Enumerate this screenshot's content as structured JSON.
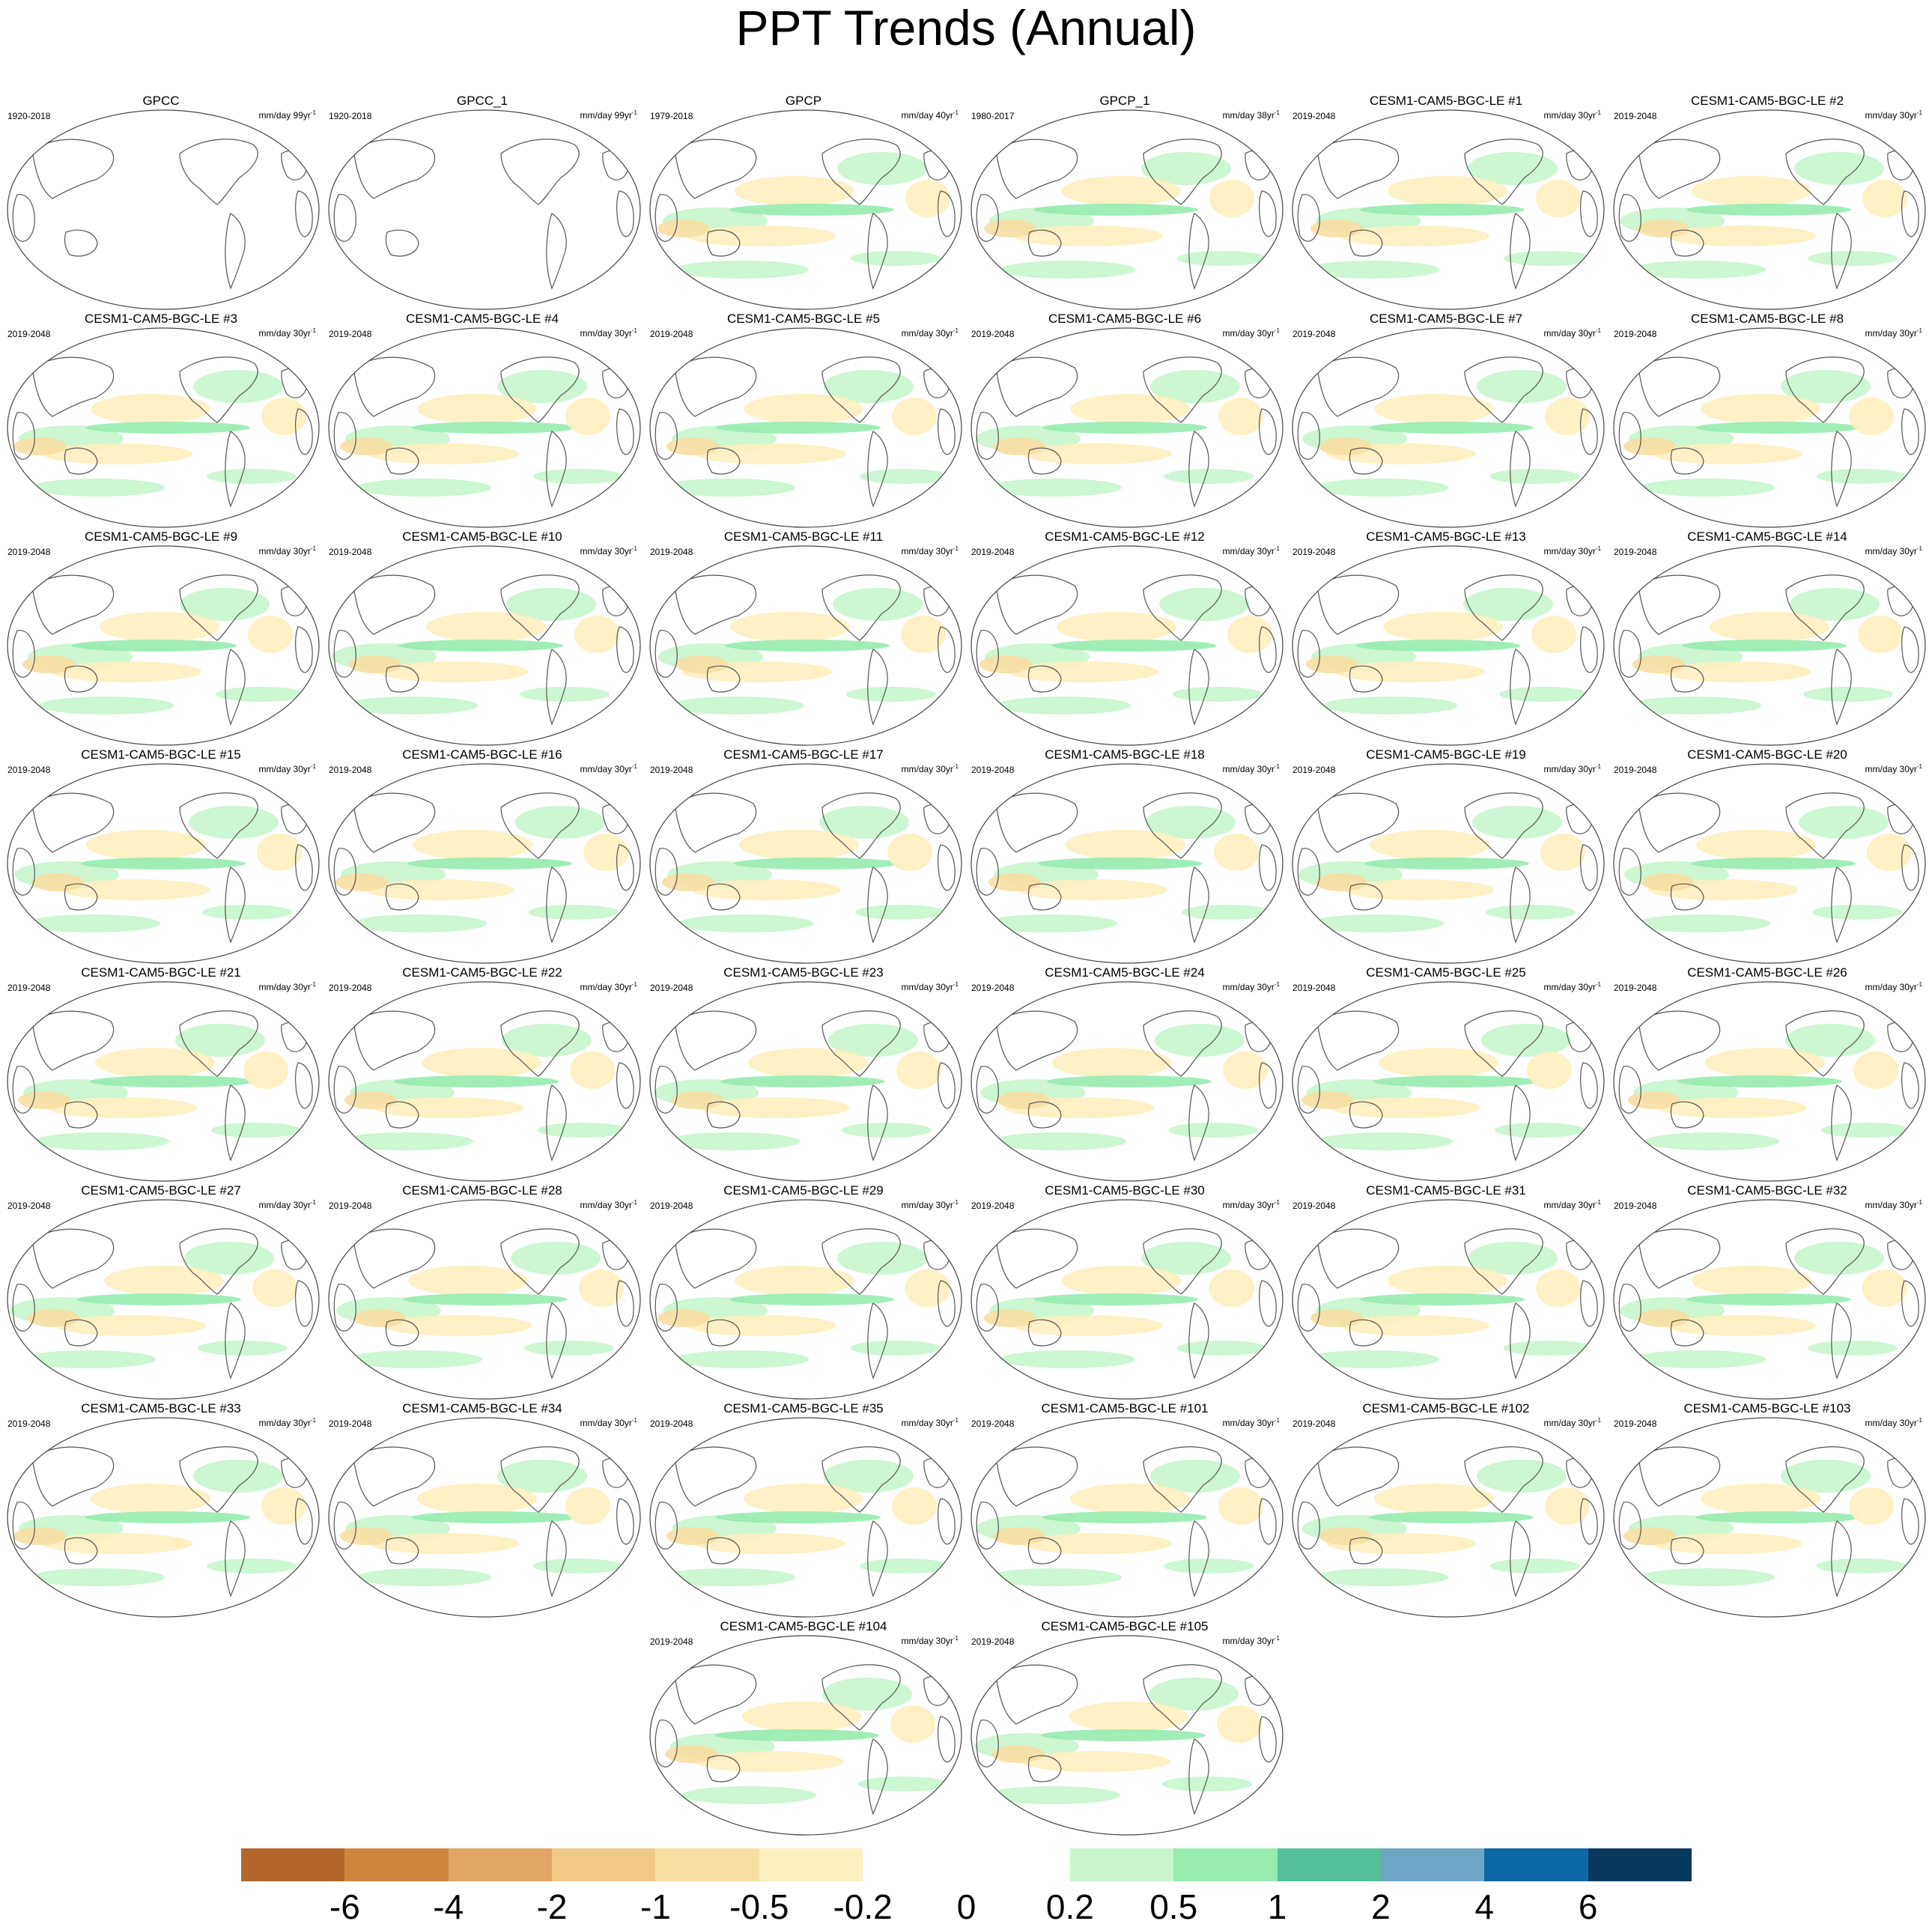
{
  "title": "PPT Trends (Annual)",
  "chart_data": {
    "type": "map-panels",
    "title": "PPT Trends (Annual)",
    "variable": "precipitation trend",
    "units_label": "mm/day",
    "projection": "Robinson (Pacific-centered)",
    "panels": [
      {
        "name": "GPCC",
        "period": "1920-2018",
        "units": "mm/day",
        "span": "99yr"
      },
      {
        "name": "GPCC_1",
        "period": "1920-2018",
        "units": "mm/day",
        "span": "99yr"
      },
      {
        "name": "GPCP",
        "period": "1979-2018",
        "units": "mm/day",
        "span": "40yr"
      },
      {
        "name": "GPCP_1",
        "period": "1980-2017",
        "units": "mm/day",
        "span": "38yr"
      },
      {
        "name": "CESM1-CAM5-BGC-LE #1",
        "period": "2019-2048",
        "units": "mm/day",
        "span": "30yr"
      },
      {
        "name": "CESM1-CAM5-BGC-LE #2",
        "period": "2019-2048",
        "units": "mm/day",
        "span": "30yr"
      },
      {
        "name": "CESM1-CAM5-BGC-LE #3",
        "period": "2019-2048",
        "units": "mm/day",
        "span": "30yr"
      },
      {
        "name": "CESM1-CAM5-BGC-LE #4",
        "period": "2019-2048",
        "units": "mm/day",
        "span": "30yr"
      },
      {
        "name": "CESM1-CAM5-BGC-LE #5",
        "period": "2019-2048",
        "units": "mm/day",
        "span": "30yr"
      },
      {
        "name": "CESM1-CAM5-BGC-LE #6",
        "period": "2019-2048",
        "units": "mm/day",
        "span": "30yr"
      },
      {
        "name": "CESM1-CAM5-BGC-LE #7",
        "period": "2019-2048",
        "units": "mm/day",
        "span": "30yr"
      },
      {
        "name": "CESM1-CAM5-BGC-LE #8",
        "period": "2019-2048",
        "units": "mm/day",
        "span": "30yr"
      },
      {
        "name": "CESM1-CAM5-BGC-LE #9",
        "period": "2019-2048",
        "units": "mm/day",
        "span": "30yr"
      },
      {
        "name": "CESM1-CAM5-BGC-LE #10",
        "period": "2019-2048",
        "units": "mm/day",
        "span": "30yr"
      },
      {
        "name": "CESM1-CAM5-BGC-LE #11",
        "period": "2019-2048",
        "units": "mm/day",
        "span": "30yr"
      },
      {
        "name": "CESM1-CAM5-BGC-LE #12",
        "period": "2019-2048",
        "units": "mm/day",
        "span": "30yr"
      },
      {
        "name": "CESM1-CAM5-BGC-LE #13",
        "period": "2019-2048",
        "units": "mm/day",
        "span": "30yr"
      },
      {
        "name": "CESM1-CAM5-BGC-LE #14",
        "period": "2019-2048",
        "units": "mm/day",
        "span": "30yr"
      },
      {
        "name": "CESM1-CAM5-BGC-LE #15",
        "period": "2019-2048",
        "units": "mm/day",
        "span": "30yr"
      },
      {
        "name": "CESM1-CAM5-BGC-LE #16",
        "period": "2019-2048",
        "units": "mm/day",
        "span": "30yr"
      },
      {
        "name": "CESM1-CAM5-BGC-LE #17",
        "period": "2019-2048",
        "units": "mm/day",
        "span": "30yr"
      },
      {
        "name": "CESM1-CAM5-BGC-LE #18",
        "period": "2019-2048",
        "units": "mm/day",
        "span": "30yr"
      },
      {
        "name": "CESM1-CAM5-BGC-LE #19",
        "period": "2019-2048",
        "units": "mm/day",
        "span": "30yr"
      },
      {
        "name": "CESM1-CAM5-BGC-LE #20",
        "period": "2019-2048",
        "units": "mm/day",
        "span": "30yr"
      },
      {
        "name": "CESM1-CAM5-BGC-LE #21",
        "period": "2019-2048",
        "units": "mm/day",
        "span": "30yr"
      },
      {
        "name": "CESM1-CAM5-BGC-LE #22",
        "period": "2019-2048",
        "units": "mm/day",
        "span": "30yr"
      },
      {
        "name": "CESM1-CAM5-BGC-LE #23",
        "period": "2019-2048",
        "units": "mm/day",
        "span": "30yr"
      },
      {
        "name": "CESM1-CAM5-BGC-LE #24",
        "period": "2019-2048",
        "units": "mm/day",
        "span": "30yr"
      },
      {
        "name": "CESM1-CAM5-BGC-LE #25",
        "period": "2019-2048",
        "units": "mm/day",
        "span": "30yr"
      },
      {
        "name": "CESM1-CAM5-BGC-LE #26",
        "period": "2019-2048",
        "units": "mm/day",
        "span": "30yr"
      },
      {
        "name": "CESM1-CAM5-BGC-LE #27",
        "period": "2019-2048",
        "units": "mm/day",
        "span": "30yr"
      },
      {
        "name": "CESM1-CAM5-BGC-LE #28",
        "period": "2019-2048",
        "units": "mm/day",
        "span": "30yr"
      },
      {
        "name": "CESM1-CAM5-BGC-LE #29",
        "period": "2019-2048",
        "units": "mm/day",
        "span": "30yr"
      },
      {
        "name": "CESM1-CAM5-BGC-LE #30",
        "period": "2019-2048",
        "units": "mm/day",
        "span": "30yr"
      },
      {
        "name": "CESM1-CAM5-BGC-LE #31",
        "period": "2019-2048",
        "units": "mm/day",
        "span": "30yr"
      },
      {
        "name": "CESM1-CAM5-BGC-LE #32",
        "period": "2019-2048",
        "units": "mm/day",
        "span": "30yr"
      },
      {
        "name": "CESM1-CAM5-BGC-LE #33",
        "period": "2019-2048",
        "units": "mm/day",
        "span": "30yr"
      },
      {
        "name": "CESM1-CAM5-BGC-LE #34",
        "period": "2019-2048",
        "units": "mm/day",
        "span": "30yr"
      },
      {
        "name": "CESM1-CAM5-BGC-LE #35",
        "period": "2019-2048",
        "units": "mm/day",
        "span": "30yr"
      },
      {
        "name": "CESM1-CAM5-BGC-LE #101",
        "period": "2019-2048",
        "units": "mm/day",
        "span": "30yr"
      },
      {
        "name": "CESM1-CAM5-BGC-LE #102",
        "period": "2019-2048",
        "units": "mm/day",
        "span": "30yr"
      },
      {
        "name": "CESM1-CAM5-BGC-LE #103",
        "period": "2019-2048",
        "units": "mm/day",
        "span": "30yr"
      },
      {
        "name": "CESM1-CAM5-BGC-LE #104",
        "period": "2019-2048",
        "units": "mm/day",
        "span": "30yr"
      },
      {
        "name": "CESM1-CAM5-BGC-LE #105",
        "period": "2019-2048",
        "units": "mm/day",
        "span": "30yr"
      }
    ],
    "colorbar": {
      "levels": [
        "-6",
        "-4",
        "-2",
        "-1",
        "-0.5",
        "-0.2",
        "0",
        "0.2",
        "0.5",
        "1",
        "2",
        "4",
        "6"
      ],
      "colors": [
        "#b5662a",
        "#cf873f",
        "#e0a565",
        "#f1c987",
        "#f7dfa2",
        "#fdf0bf",
        "#ffffff",
        "#ffffff",
        "#c8f5cd",
        "#97ebb0",
        "#56bf9b",
        "#6ea6c6",
        "#0e68a5",
        "#073a5c"
      ]
    }
  }
}
